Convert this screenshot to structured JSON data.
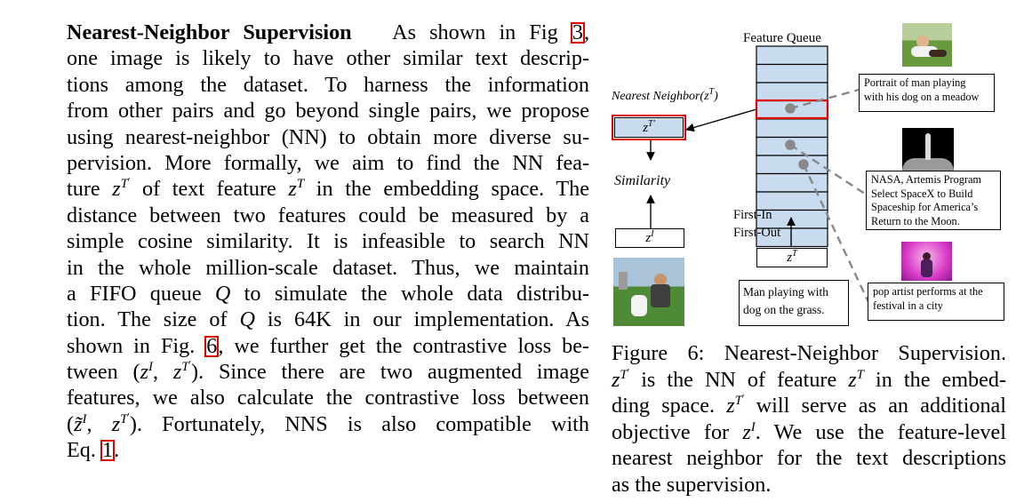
{
  "body_text": {
    "heading": "Nearest-Neighbor Supervision",
    "fig3_ref": "3",
    "fig6_ref": "6",
    "eq1_ref": "1",
    "segments": {
      "l1a": "As shown in Fig ",
      "l1b": ",",
      "l2": "one image is likely to have other similar text descrip-",
      "l3": "tions among the dataset. To harness the information",
      "l4": "from other pairs and go beyond single pairs, we propose",
      "l5": "using nearest-neighbor (NN) to obtain more diverse su-",
      "l6": "pervision. More formally, we aim to find the NN fea-",
      "l7a": "ture ",
      "l7b": " of text feature ",
      "l7c": " in the embedding space. The",
      "l8": "distance between two features could be measured by a",
      "l9": "simple cosine similarity. It is infeasible to search NN",
      "l10": "in the whole million-scale dataset. Thus, we maintain",
      "l11a": "a FIFO queue ",
      "l11b": " to simulate the whole data distribu-",
      "l12a": "tion. The size of ",
      "l12b": " is 64K in our implementation. As",
      "l13a": "shown in Fig. ",
      "l13b": ", we further get the contrastive loss be-",
      "l14a": "tween (",
      "l14b": "). Since there are two augmented image",
      "l15": "features, we also calculate the contrastive loss between",
      "l16a": "(",
      "l16b": "). Fortunately, NNS is also compatible with",
      "l17a": "Eq. ",
      "l17b": "."
    },
    "math": {
      "z": "z",
      "T": "T",
      "I": "I",
      "prime": "′",
      "comma": ", ",
      "Q": "Q",
      "ztilde": "z̃"
    }
  },
  "figure": {
    "queue_title": "Feature Queue",
    "nn_label": "Nearest Neighbor(",
    "nn_label_close": ")",
    "similarity_label": "Similarity",
    "fifo_line1": "First-In",
    "fifo_line2": "First-Out",
    "nn_box_math": "z",
    "zi_box": "z",
    "zt_box": "z",
    "text_input_line1": "Man playing with",
    "text_input_line2": "dog on the grass.",
    "desc1_line1": "Portrait of man playing",
    "desc1_line2": "with his dog on a meadow",
    "desc2_line1": "NASA, Artemis Program",
    "desc2_line2": "Select SpaceX to Build",
    "desc2_line3": "Spaceship for America’s",
    "desc2_line4": "Return to the Moon.",
    "desc3_line1": "pop artist performs at the",
    "desc3_line2": "festival in a city",
    "queue_cells": 11,
    "highlighted_cell": 3,
    "colors": {
      "queue_fill": "#c9dcef",
      "highlight": "#e00000",
      "dashed": "#888888"
    }
  },
  "caption": {
    "l1": "Figure 6: Nearest-Neighbor Supervision.",
    "l2a": " is the NN of feature ",
    "l2b": " in the embed-",
    "l3a": "ding space. ",
    "l3b": " will serve as an additional",
    "l4a": "objective for ",
    "l4b": ". We use the feature-level",
    "l5": "nearest neighbor for the text descriptions",
    "l6": "as the supervision."
  }
}
